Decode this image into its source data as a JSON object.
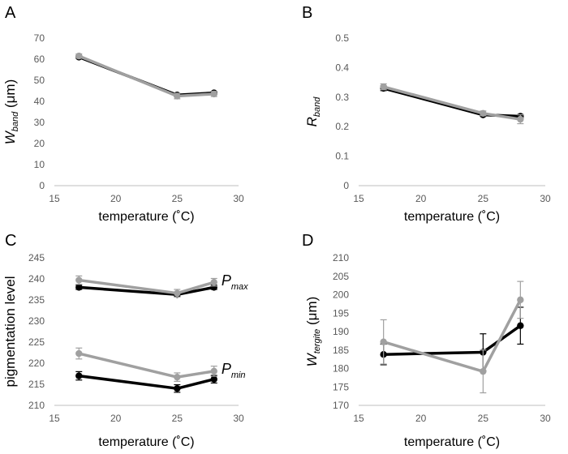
{
  "colors": {
    "black": "#000000",
    "gray": "#a0a0a0",
    "axis": "#bfbfbf",
    "text": "#595959"
  },
  "chart_data": [
    {
      "panel": "A",
      "type": "line",
      "ylabel_main": "W",
      "ylabel_sub": "band",
      "ylabel_tail": " (μm)",
      "xlabel": "temperature (˚C)",
      "xlim": [
        15,
        30
      ],
      "ylim": [
        0,
        70
      ],
      "xticks": [
        15,
        20,
        25,
        30
      ],
      "yticks": [
        0,
        10,
        20,
        30,
        40,
        50,
        60,
        70
      ],
      "x": [
        17,
        25,
        28
      ],
      "series": [
        {
          "name": "black",
          "color": "#000000",
          "values": [
            61,
            43,
            44
          ],
          "errors": [
            0.7,
            0.7,
            0.7
          ]
        },
        {
          "name": "gray",
          "color": "#a0a0a0",
          "values": [
            61.5,
            42.5,
            43.5
          ],
          "errors": [
            1.0,
            1.3,
            1.2
          ]
        }
      ],
      "annotations": []
    },
    {
      "panel": "B",
      "type": "line",
      "ylabel_main": "R",
      "ylabel_sub": "band",
      "ylabel_tail": "",
      "xlabel": "temperature (˚C)",
      "xlim": [
        15,
        30
      ],
      "ylim": [
        0,
        0.5
      ],
      "xticks": [
        15,
        20,
        25,
        30
      ],
      "yticks": [
        0,
        0.1,
        0.2,
        0.3,
        0.4,
        0.5
      ],
      "x": [
        17,
        25,
        28
      ],
      "series": [
        {
          "name": "black",
          "color": "#000000",
          "values": [
            0.33,
            0.24,
            0.235
          ],
          "errors": [
            0.008,
            0.005,
            0.006
          ]
        },
        {
          "name": "gray",
          "color": "#a0a0a0",
          "values": [
            0.335,
            0.245,
            0.225
          ],
          "errors": [
            0.01,
            0.008,
            0.015
          ]
        }
      ],
      "annotations": []
    },
    {
      "panel": "C",
      "type": "line",
      "ylabel_main": "pigmentation level",
      "ylabel_sub": "",
      "ylabel_tail": "",
      "xlabel": "temperature (˚C)",
      "xlim": [
        15,
        30
      ],
      "ylim": [
        210,
        245
      ],
      "xticks": [
        15,
        20,
        25,
        30
      ],
      "yticks": [
        210,
        215,
        220,
        225,
        230,
        235,
        240,
        245
      ],
      "x": [
        17,
        25,
        28
      ],
      "series": [
        {
          "name": "Pmax black",
          "color": "#000000",
          "values": [
            238,
            236.3,
            238
          ],
          "errors": [
            0.5,
            0.5,
            0.5
          ]
        },
        {
          "name": "Pmax gray",
          "color": "#a0a0a0",
          "values": [
            239.7,
            236.6,
            239.2
          ],
          "errors": [
            1.0,
            0.9,
            0.9
          ]
        },
        {
          "name": "Pmin black",
          "color": "#000000",
          "values": [
            217,
            214,
            216.2
          ],
          "errors": [
            1.0,
            0.9,
            0.9
          ]
        },
        {
          "name": "Pmin gray",
          "color": "#a0a0a0",
          "values": [
            222.3,
            216.7,
            218.1
          ],
          "errors": [
            1.3,
            1.0,
            1.2
          ]
        }
      ],
      "annotations": [
        {
          "main": "P",
          "sub": "max",
          "x": 28.6,
          "y": 238.5
        },
        {
          "main": "P",
          "sub": "min",
          "x": 28.6,
          "y": 217.5
        }
      ]
    },
    {
      "panel": "D",
      "type": "line",
      "ylabel_main": "W",
      "ylabel_sub": "tergite",
      "ylabel_tail": " (μm)",
      "xlabel": "temperature (˚C)",
      "xlim": [
        15,
        30
      ],
      "ylim": [
        170,
        210
      ],
      "xticks": [
        15,
        20,
        25,
        30
      ],
      "yticks": [
        170,
        175,
        180,
        185,
        190,
        195,
        200,
        205,
        210
      ],
      "x": [
        17,
        25,
        28
      ],
      "series": [
        {
          "name": "black",
          "color": "#000000",
          "values": [
            183.8,
            184.4,
            191.6
          ],
          "errors": [
            2.8,
            5.0,
            5.0
          ]
        },
        {
          "name": "gray",
          "color": "#a0a0a0",
          "values": [
            187.2,
            179.2,
            198.6
          ],
          "errors": [
            6.0,
            5.8,
            5.0
          ]
        }
      ],
      "annotations": []
    }
  ]
}
